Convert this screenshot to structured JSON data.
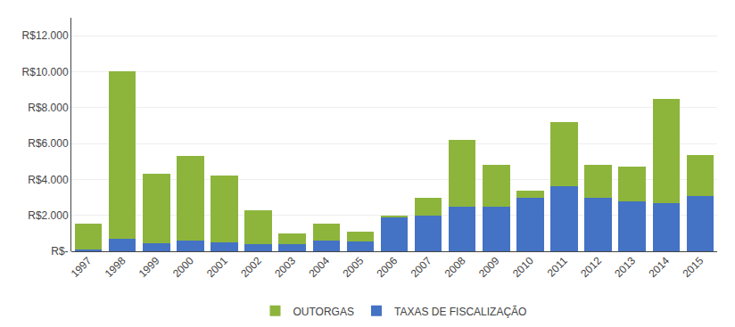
{
  "chart_data": {
    "type": "bar",
    "stacked": true,
    "categories": [
      "1997",
      "1998",
      "1999",
      "2000",
      "2001",
      "2002",
      "2003",
      "2004",
      "2005",
      "2006",
      "2007",
      "2008",
      "2009",
      "2010",
      "2011",
      "2012",
      "2013",
      "2014",
      "2015"
    ],
    "series": [
      {
        "name": "TAXAS DE FISCALIZAÇÃO",
        "color": "#4472C4",
        "values": [
          100,
          700,
          450,
          600,
          500,
          400,
          400,
          600,
          550,
          1900,
          2000,
          2500,
          2500,
          3000,
          3600,
          3000,
          2800,
          2700,
          3100
        ]
      },
      {
        "name": "OUTORGAS",
        "color": "#8DB53C",
        "values": [
          1450,
          9300,
          3850,
          4700,
          3700,
          1900,
          600,
          950,
          550,
          100,
          1000,
          3700,
          2300,
          350,
          3600,
          1800,
          1900,
          5800,
          2250
        ]
      }
    ],
    "ylim": [
      0,
      13000
    ],
    "yticks": [
      {
        "value": 0,
        "label": "R$-"
      },
      {
        "value": 2000,
        "label": "R$2.000"
      },
      {
        "value": 4000,
        "label": "R$4.000"
      },
      {
        "value": 6000,
        "label": "R$6.000"
      },
      {
        "value": 8000,
        "label": "R$8.000"
      },
      {
        "value": 10000,
        "label": "R$10.000"
      },
      {
        "value": 12000,
        "label": "R$12.000"
      }
    ],
    "grid": true,
    "legend": "bottom"
  }
}
